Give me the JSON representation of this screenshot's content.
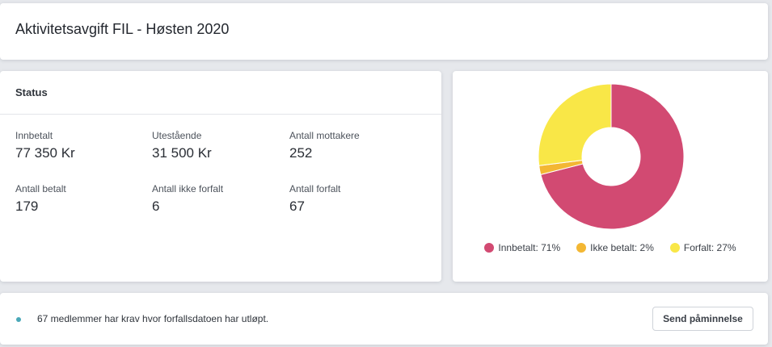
{
  "header": {
    "title": "Aktivitetsavgift FIL - Høsten 2020"
  },
  "status": {
    "title": "Status",
    "stats": [
      {
        "label": "Innbetalt",
        "value": "77 350 Kr"
      },
      {
        "label": "Utestående",
        "value": "31 500 Kr"
      },
      {
        "label": "Antall mottakere",
        "value": "252"
      },
      {
        "label": "Antall betalt",
        "value": "179"
      },
      {
        "label": "Antall ikke forfalt",
        "value": "6"
      },
      {
        "label": "Antall forfalt",
        "value": "67"
      }
    ]
  },
  "chart_data": {
    "type": "pie",
    "donut": true,
    "slices": [
      {
        "label": "Innbetalt",
        "value": 71,
        "color": "#d24a72"
      },
      {
        "label": "Ikke betalt",
        "value": 2,
        "color": "#f3b733"
      },
      {
        "label": "Forfalt",
        "value": 27,
        "color": "#f9e747"
      }
    ],
    "legend": [
      {
        "text": "Innbetalt: 71%",
        "color": "#d24a72"
      },
      {
        "text": "Ikke betalt: 2%",
        "color": "#f3b733"
      },
      {
        "text": "Forfalt: 27%",
        "color": "#f9e747"
      }
    ],
    "legend_position": "bottom"
  },
  "notice": {
    "text": "67 medlemmer har krav hvor forfallsdatoen har utløpt.",
    "dot_color": "#4aa8b8",
    "button_label": "Send påminnelse"
  }
}
